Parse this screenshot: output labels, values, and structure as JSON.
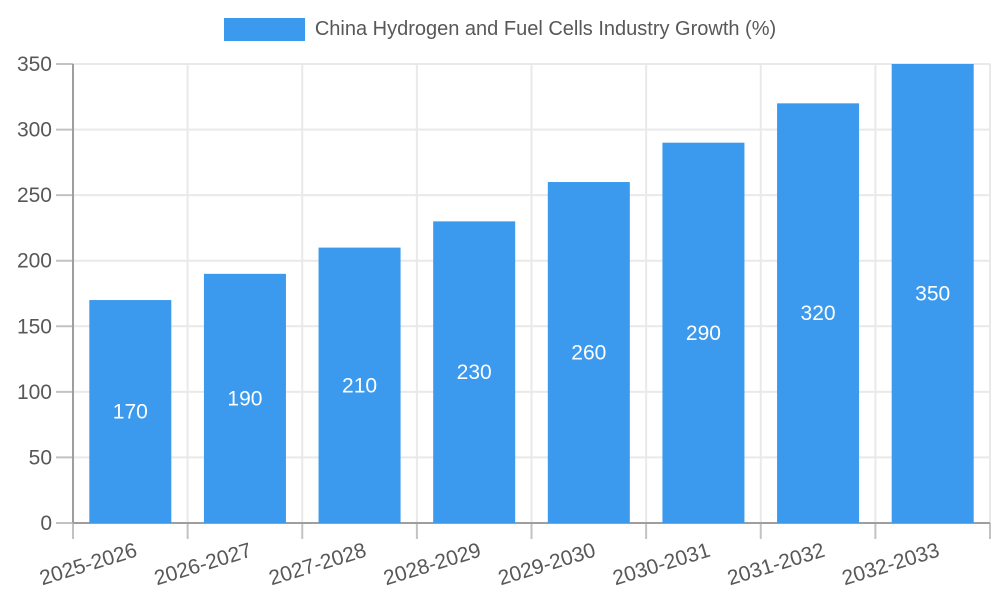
{
  "legend": {
    "label": "China Hydrogen and Fuel Cells Industry Growth (%)"
  },
  "chart_data": {
    "type": "bar",
    "title": "China Hydrogen and Fuel Cells Industry Growth (%)",
    "series": [
      {
        "name": "China Hydrogen and Fuel Cells Industry Growth (%)",
        "values": [
          170,
          190,
          210,
          230,
          260,
          290,
          320,
          350
        ]
      }
    ],
    "categories": [
      "2025-2026",
      "2026-2027",
      "2027-2028",
      "2028-2029",
      "2029-2030",
      "2030-2031",
      "2031-2032",
      "2032-2033"
    ],
    "xlabel": "",
    "ylabel": "",
    "ylim": [
      0,
      350
    ],
    "ytick_step": 50,
    "yticks": [
      0,
      50,
      100,
      150,
      200,
      250,
      300,
      350
    ],
    "grid": true,
    "legend_position": "top",
    "bar_labels_inside": true,
    "x_label_rotation_deg": -17,
    "colors": {
      "bar": "#3b99ee",
      "bar_label": "#ffffff",
      "axis_text": "#58585a",
      "grid_line": "#e9e9e9",
      "tick_line": "#c2c2c2",
      "axis_line": "#9e9e9e",
      "background": "#ffffff"
    }
  }
}
